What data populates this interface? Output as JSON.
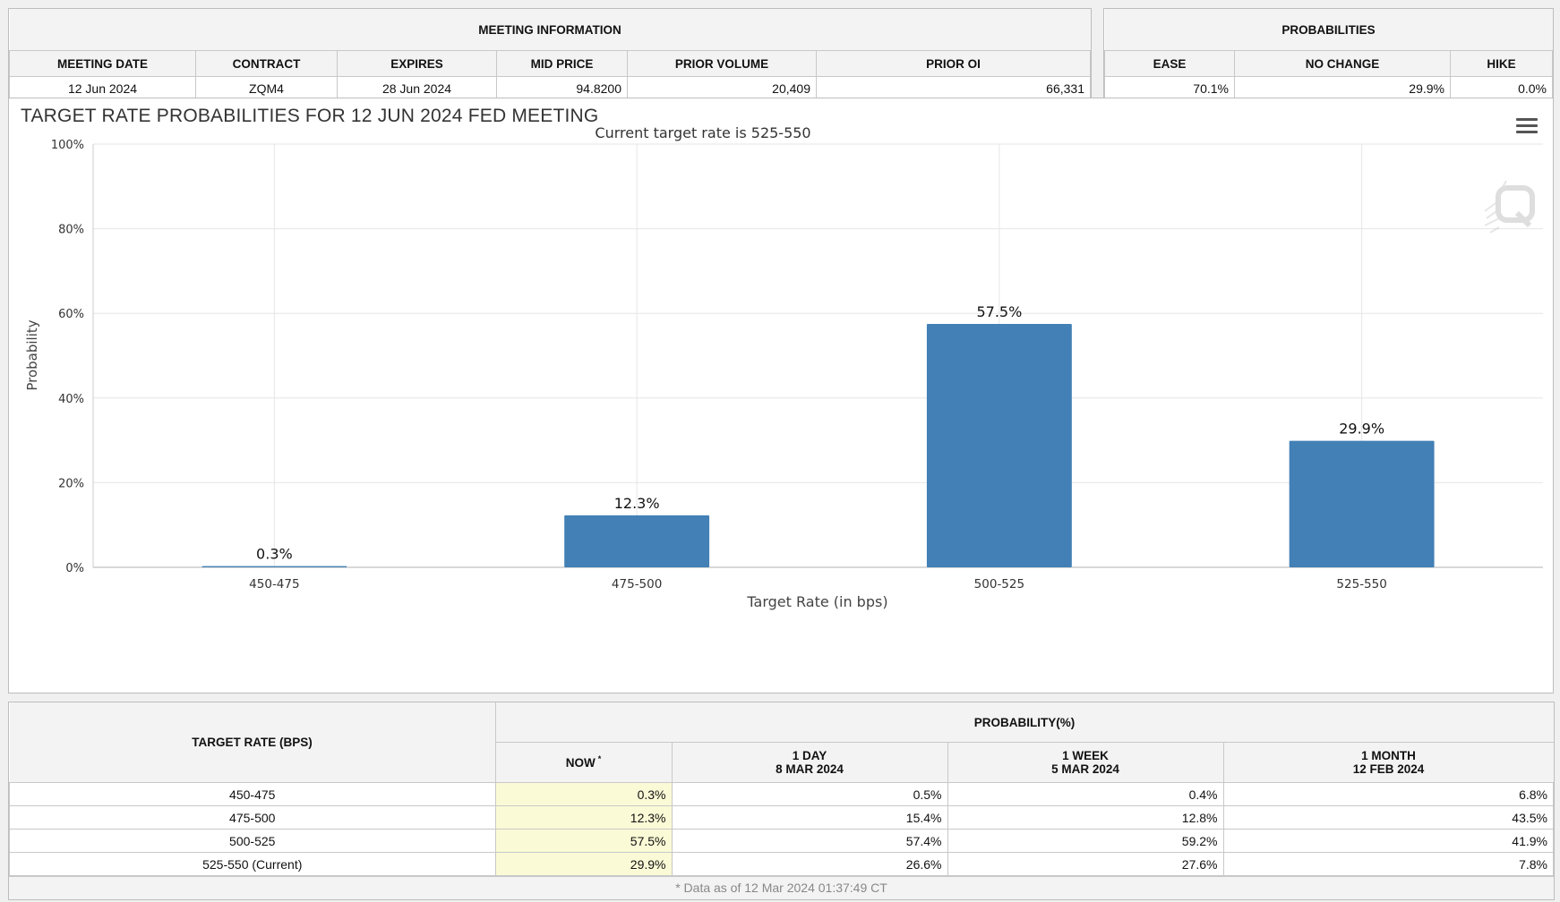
{
  "meeting_info": {
    "title": "MEETING INFORMATION",
    "headers": [
      "MEETING DATE",
      "CONTRACT",
      "EXPIRES",
      "MID PRICE",
      "PRIOR VOLUME",
      "PRIOR OI"
    ],
    "values": [
      "12 Jun 2024",
      "ZQM4",
      "28 Jun 2024",
      "94.8200",
      "20,409",
      "66,331"
    ]
  },
  "probabilities": {
    "title": "PROBABILITIES",
    "headers": [
      "EASE",
      "NO CHANGE",
      "HIKE"
    ],
    "values": [
      "70.1%",
      "29.9%",
      "0.0%"
    ]
  },
  "chart_data": {
    "type": "bar",
    "title": "TARGET RATE PROBABILITIES FOR 12 JUN 2024 FED MEETING",
    "subtitle": "Current target rate is 525-550",
    "xlabel": "Target Rate (in bps)",
    "ylabel": "Probability",
    "categories": [
      "450-475",
      "475-500",
      "500-525",
      "525-550"
    ],
    "values": [
      0.3,
      12.3,
      57.5,
      29.9
    ],
    "data_labels": [
      "0.3%",
      "12.3%",
      "57.5%",
      "29.9%"
    ],
    "ylim": [
      0,
      100
    ],
    "yticks": [
      "0%",
      "20%",
      "40%",
      "60%",
      "80%",
      "100%"
    ],
    "grid": true,
    "bar_color": "#4280b5"
  },
  "prob_table": {
    "col_target": "TARGET RATE (BPS)",
    "group_title": "PROBABILITY(%)",
    "cols": [
      {
        "l1": "NOW",
        "l2": ""
      },
      {
        "l1": "1 DAY",
        "l2": "8 MAR 2024"
      },
      {
        "l1": "1 WEEK",
        "l2": "5 MAR 2024"
      },
      {
        "l1": "1 MONTH",
        "l2": "12 FEB 2024"
      }
    ],
    "now_marker": "*",
    "rows": [
      {
        "rate": "450-475",
        "vals": [
          "0.3%",
          "0.5%",
          "0.4%",
          "6.8%"
        ]
      },
      {
        "rate": "475-500",
        "vals": [
          "12.3%",
          "15.4%",
          "12.8%",
          "43.5%"
        ]
      },
      {
        "rate": "500-525",
        "vals": [
          "57.5%",
          "57.4%",
          "59.2%",
          "41.9%"
        ]
      },
      {
        "rate": "525-550 (Current)",
        "vals": [
          "29.9%",
          "26.6%",
          "27.6%",
          "7.8%"
        ]
      }
    ],
    "footnote": "* Data as of 12 Mar 2024 01:37:49 CT"
  }
}
